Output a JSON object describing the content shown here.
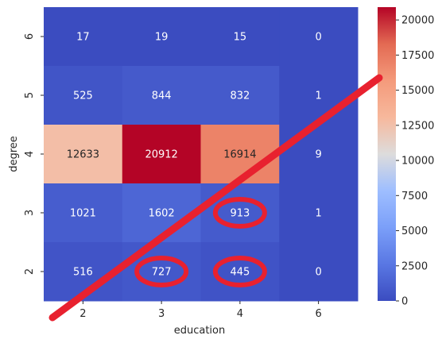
{
  "chart_data": {
    "type": "heatmap",
    "xlabel": "education",
    "ylabel": "degree",
    "x_categories": [
      "2",
      "3",
      "4",
      "6"
    ],
    "y_categories": [
      "6",
      "5",
      "4",
      "3",
      "2"
    ],
    "values": [
      [
        17,
        19,
        15,
        0
      ],
      [
        525,
        844,
        832,
        1
      ],
      [
        12633,
        20912,
        16914,
        9
      ],
      [
        1021,
        1602,
        913,
        1
      ],
      [
        516,
        727,
        445,
        0
      ]
    ],
    "colormap": "coolwarm",
    "vmin": 0,
    "vmax": 20912,
    "colorbar_ticks": [
      "0",
      "2500",
      "5000",
      "7500",
      "10000",
      "12500",
      "15000",
      "17500",
      "20000"
    ],
    "colorbar_tick_values": [
      0,
      2500,
      5000,
      7500,
      10000,
      12500,
      15000,
      17500,
      20000
    ],
    "annotations": {
      "circled_cells": [
        {
          "row": "3",
          "col": "4"
        },
        {
          "row": "2",
          "col": "3"
        },
        {
          "row": "2",
          "col": "4"
        }
      ],
      "diagonal_stroke": true,
      "stroke_color": "#e8212f"
    },
    "colors": {
      "ink": "#262626",
      "annotation": "#e8212f"
    }
  }
}
